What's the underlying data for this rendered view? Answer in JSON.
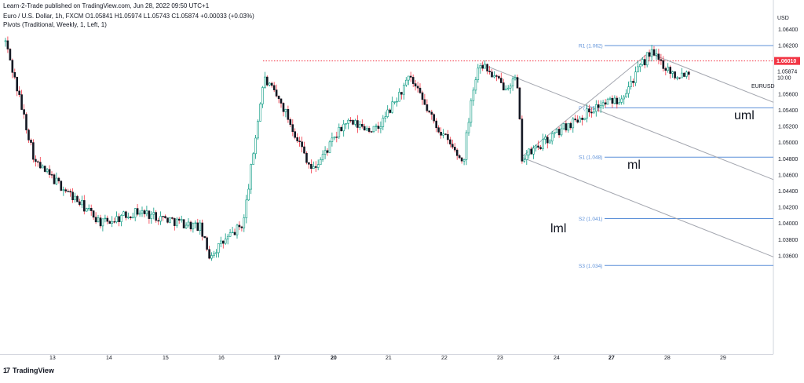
{
  "header": {
    "published": "Learn-2-Trade published on TradingView.com, Jun 28, 2022 09:50 UTC+1",
    "symbol_line": "Euro / U.S. Dollar, 1h, FXCM  O1.05841  H1.05974  L1.05743  C1.05874  +0.00033 (+0.03%)",
    "pivots_line": "Pivots (Traditional, Weekly, 1, Left, 1)"
  },
  "footer": {
    "logo_mark": "17",
    "logo_text": "TradingView"
  },
  "colors": {
    "up": "#089981",
    "down": "#f23645",
    "candle": "#131722",
    "pivot": "#5b8fd8",
    "pitchfork": "#a3a6af",
    "resistance": "#f23645",
    "current": "#f23645",
    "price_label": "#ffffff",
    "text": "#131722"
  },
  "chart_data": {
    "type": "candlestick",
    "symbol": "EURUSD",
    "currency": "USD",
    "timeframe": "1h",
    "ylim": [
      1.0345,
      1.0652
    ],
    "y_ticks": [
      1.064,
      1.062,
      1.058,
      1.056,
      1.054,
      1.052,
      1.05,
      1.048,
      1.046,
      1.044,
      1.042,
      1.04,
      1.038,
      1.036
    ],
    "x_ticks": [
      "13",
      "14",
      "15",
      "16",
      "17",
      "20",
      "21",
      "22",
      "23",
      "24",
      "27",
      "28",
      "29"
    ],
    "current_price": "1.05874",
    "countdown": "10:00",
    "resistance": {
      "label": "1.06010",
      "value": 1.0601
    },
    "pivot_levels": [
      {
        "name": "R1 (1.062)",
        "value": 1.062
      },
      {
        "name": "P (1.054)",
        "value": 1.0543
      },
      {
        "name": "S1 (1.048)",
        "value": 1.0482
      },
      {
        "name": "S2 (1.041)",
        "value": 1.0406
      },
      {
        "name": "S3 (1.034)",
        "value": 1.0348
      }
    ],
    "pitchfork_labels": {
      "upper": "uml",
      "median": "ml",
      "lower": "lml"
    },
    "anchors": [
      {
        "date": "Jun 10",
        "price": 1.0625
      },
      {
        "date": "Jun 13",
        "price": 1.0475
      },
      {
        "date": "Jun 14",
        "price": 1.04
      },
      {
        "date": "Jun 15",
        "price": 1.0415
      },
      {
        "date": "Jun 15 (late)",
        "price": 1.0395
      },
      {
        "date": "Jun 16",
        "price": 1.036
      },
      {
        "date": "Jun 16 (late)",
        "price": 1.04
      },
      {
        "date": "Jun 17",
        "price": 1.058
      },
      {
        "date": "Jun 17 (late)",
        "price": 1.0545
      },
      {
        "date": "Jun 20",
        "price": 1.0465
      },
      {
        "date": "Jun 20 (late)",
        "price": 1.0525
      },
      {
        "date": "Jun 21",
        "price": 1.0515
      },
      {
        "date": "Jun 21 (late)",
        "price": 1.058
      },
      {
        "date": "Jun 22",
        "price": 1.0525
      },
      {
        "date": "Jun 22 (late)",
        "price": 1.0475
      },
      {
        "date": "Jun 22 (close)",
        "price": 1.0555
      },
      {
        "date": "Jun 23",
        "price": 1.06
      },
      {
        "date": "Jun 23 (mid)",
        "price": 1.057
      },
      {
        "date": "Jun 23 (late)",
        "price": 1.0578
      },
      {
        "date": "Jun 23 (close)",
        "price": 1.048
      },
      {
        "date": "Jun 24",
        "price": 1.052
      },
      {
        "date": "Jun 24 (late)",
        "price": 1.0545
      },
      {
        "date": "Jun 27",
        "price": 1.0555
      },
      {
        "date": "Jun 27 (late)",
        "price": 1.0612
      },
      {
        "date": "Jun 28",
        "price": 1.0583
      },
      {
        "date": "Jun 28 (now)",
        "price": 1.0588
      }
    ]
  }
}
